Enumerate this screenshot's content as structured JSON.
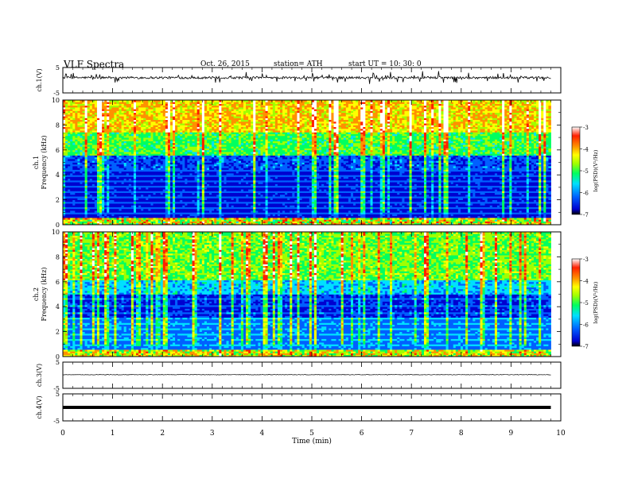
{
  "header": {
    "title": "VLF  Spectra",
    "date": "Oct. 26, 2015",
    "station": "station= ATH",
    "start_ut": "start  UT =   10: 30: 0"
  },
  "chart_data": [
    {
      "type": "line",
      "name": "ch1-waveform",
      "ylabel": "ch.1(V)",
      "xlim": [
        0,
        10
      ],
      "ylim": [
        -5,
        5
      ],
      "yticks": [
        5,
        -5
      ],
      "baseline": 1.0,
      "spike_amplitude": 2.5,
      "x_end": 9.8
    },
    {
      "type": "heatmap",
      "name": "ch1-spectrogram",
      "ylabel": "ch.1\nFrequency  (kHz)",
      "ylim": [
        0,
        10
      ],
      "yticks": [
        0,
        2,
        4,
        6,
        8,
        10
      ],
      "x_end": 9.8,
      "colorbar": {
        "label": "log(PSD)(V²/Hz)",
        "ticks": [
          -3,
          -4,
          -5,
          -6,
          -7
        ],
        "range": [
          -7,
          -3
        ]
      }
    },
    {
      "type": "heatmap",
      "name": "ch2-spectrogram",
      "ylabel": "ch.2\nFrequency  (kHz)",
      "ylim": [
        0,
        10
      ],
      "yticks": [
        0,
        2,
        4,
        6,
        8,
        10
      ],
      "x_end": 9.8,
      "colorbar": {
        "label": "log(PSD)(V²/Hz)",
        "ticks": [
          -3,
          -4,
          -5,
          -6,
          -7
        ],
        "range": [
          -7,
          -3
        ]
      }
    },
    {
      "type": "line",
      "name": "ch3-waveform",
      "ylabel": "ch.3(V)",
      "xlim": [
        0,
        10
      ],
      "ylim": [
        -5,
        5
      ],
      "yticks": [
        5,
        -5
      ],
      "baseline": 0.2,
      "x_end": 9.8
    },
    {
      "type": "line",
      "name": "ch4-waveform",
      "ylabel": "ch.4(V)",
      "xlim": [
        0,
        10
      ],
      "ylim": [
        -5,
        5
      ],
      "yticks": [
        5,
        -5
      ],
      "baseline": 0.0,
      "x_end": 9.8
    }
  ],
  "xaxis": {
    "label": "Time  (min)",
    "ticks": [
      0,
      1,
      2,
      3,
      4,
      5,
      6,
      7,
      8,
      9,
      10
    ],
    "xlim": [
      0,
      10
    ]
  },
  "colors": {
    "scale": [
      "#000000",
      "#0000d0",
      "#0060ff",
      "#00e0ff",
      "#00ff60",
      "#a0ff00",
      "#ffff00",
      "#ff9000",
      "#ff2000",
      "#ffffff"
    ]
  }
}
